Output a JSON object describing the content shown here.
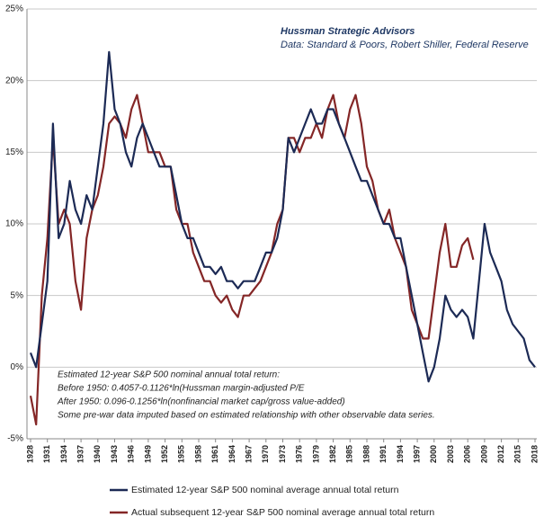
{
  "chart_data": {
    "type": "line",
    "annotations": [
      "Hussman Strategic Advisors",
      "Data: Standard & Poors, Robert Shiller, Federal Reserve"
    ],
    "notes": [
      "Estimated 12-year S&P 500 nominal annual total return:",
      "Before 1950:  0.4057-0.1126*ln(Hussman margin-adjusted P/E",
      "After 1950:  0.096-0.1256*ln(nonfinancial market cap/gross value-added)",
      "Some pre-war data imputed based on estimated relationship with other observable data series."
    ],
    "x": [
      1928,
      1929,
      1930,
      1931,
      1932,
      1933,
      1934,
      1935,
      1936,
      1937,
      1938,
      1939,
      1940,
      1941,
      1942,
      1943,
      1944,
      1945,
      1946,
      1947,
      1948,
      1949,
      1950,
      1951,
      1952,
      1953,
      1954,
      1955,
      1956,
      1957,
      1958,
      1959,
      1960,
      1961,
      1962,
      1963,
      1964,
      1965,
      1966,
      1967,
      1968,
      1969,
      1970,
      1971,
      1972,
      1973,
      1974,
      1975,
      1976,
      1977,
      1978,
      1979,
      1980,
      1981,
      1982,
      1983,
      1984,
      1985,
      1986,
      1987,
      1988,
      1989,
      1990,
      1991,
      1992,
      1993,
      1994,
      1995,
      1996,
      1997,
      1998,
      1999,
      2000,
      2001,
      2002,
      2003,
      2004,
      2005,
      2006,
      2007,
      2008,
      2009,
      2010,
      2011,
      2012,
      2013,
      2014,
      2015,
      2016,
      2017,
      2018
    ],
    "series": [
      {
        "name": "Estimated 12-year S&P 500 nominal average annual total return",
        "color": "#1c2a55",
        "values": [
          1,
          0,
          3,
          6,
          17,
          9,
          10,
          13,
          11,
          10,
          12,
          11,
          14,
          17,
          22,
          18,
          17,
          15,
          14,
          16,
          17,
          16,
          15,
          14,
          14,
          14,
          12,
          10,
          9,
          9,
          8,
          7,
          7,
          6.5,
          7,
          6,
          6,
          5.5,
          6,
          6,
          6,
          7,
          8,
          8,
          9,
          11,
          16,
          15,
          16,
          17,
          18,
          17,
          17,
          18,
          18,
          17,
          16,
          15,
          14,
          13,
          13,
          12,
          11,
          10,
          10,
          9,
          9,
          7,
          5,
          3,
          1,
          -1,
          0,
          2,
          5,
          4,
          3.5,
          4,
          3.5,
          2,
          6,
          10,
          8,
          7,
          6,
          4,
          3,
          2.5,
          2,
          0.5,
          0
        ]
      },
      {
        "name": "Actual subsequent 12-year S&P 500 nominal average annual total return",
        "color": "#842626",
        "values": [
          -2,
          -4,
          5,
          9,
          16,
          10,
          11,
          10,
          6,
          4,
          9,
          11,
          12,
          14,
          17,
          17.5,
          17,
          16,
          18,
          19,
          17,
          15,
          15,
          15,
          14,
          14,
          11,
          10,
          10,
          8,
          7,
          6,
          6,
          5,
          4.5,
          5,
          4,
          3.5,
          5,
          5,
          5.5,
          6,
          7,
          8,
          10,
          11,
          16,
          16,
          15,
          16,
          16,
          17,
          16,
          18,
          19,
          17,
          16,
          18,
          19,
          17,
          14,
          13,
          11,
          10,
          11,
          9,
          8,
          7,
          4,
          3,
          2,
          2,
          5,
          8,
          10,
          7,
          7,
          8.5,
          9,
          7.5,
          null,
          null,
          null,
          null,
          null,
          null,
          null,
          null,
          null,
          null,
          null
        ]
      }
    ],
    "xlim": [
      1928,
      2018
    ],
    "xticks": [
      1928,
      1931,
      1934,
      1937,
      1940,
      1943,
      1946,
      1949,
      1952,
      1955,
      1958,
      1961,
      1964,
      1967,
      1970,
      1973,
      1976,
      1979,
      1982,
      1985,
      1988,
      1991,
      1994,
      1997,
      2000,
      2003,
      2006,
      2009,
      2012,
      2015,
      2018
    ],
    "ylim": [
      -5,
      25
    ],
    "yticks": [
      {
        "value": -5,
        "label": "-5%"
      },
      {
        "value": 0,
        "label": "0%"
      },
      {
        "value": 5,
        "label": "5%"
      },
      {
        "value": 10,
        "label": "10%"
      },
      {
        "value": 15,
        "label": "15%"
      },
      {
        "value": 20,
        "label": "20%"
      },
      {
        "value": 25,
        "label": "25%"
      }
    ],
    "grid": true
  }
}
